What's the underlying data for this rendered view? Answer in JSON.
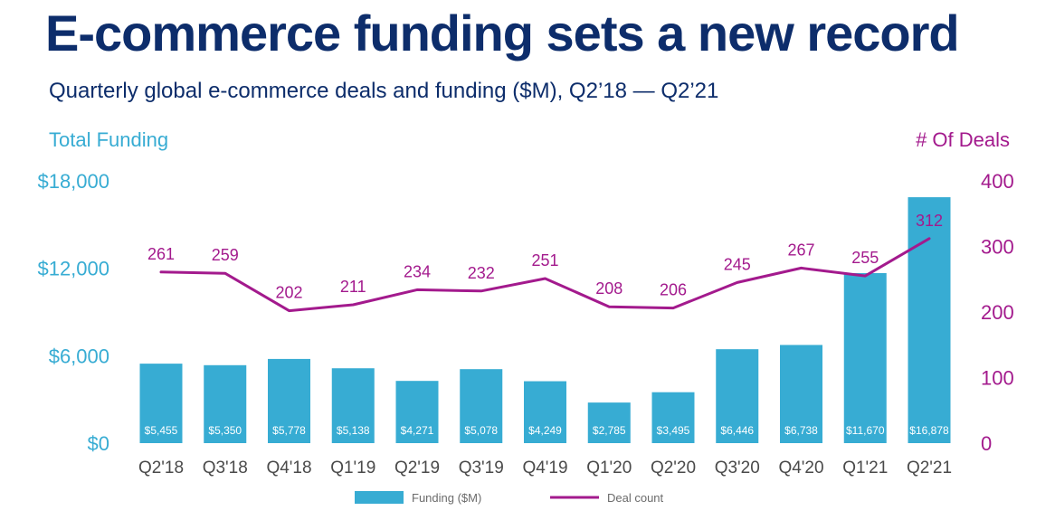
{
  "title": "E-commerce funding sets a new record",
  "subtitle": "Quarterly global e-commerce deals and funding ($M), Q2’18 — Q2’21",
  "colors": {
    "title": "#0d2d6b",
    "bars": "#37acd3",
    "line": "#a31a8d",
    "bar_label": "#ffffff",
    "tick": "#4a4a4a",
    "legend_text": "#6b6b6b"
  },
  "chart_data": {
    "type": "bar",
    "categories": [
      "Q2'18",
      "Q3'18",
      "Q4'18",
      "Q1'19",
      "Q2'19",
      "Q3'19",
      "Q4'19",
      "Q1'20",
      "Q2'20",
      "Q3'20",
      "Q4'20",
      "Q1'21",
      "Q2'21"
    ],
    "series": [
      {
        "name": "Funding ($M)",
        "type": "bar",
        "axis": "left",
        "values": [
          5455,
          5350,
          5778,
          5138,
          4271,
          5078,
          4249,
          2785,
          3495,
          6446,
          6738,
          11670,
          16878
        ],
        "labels": [
          "$5,455",
          "$5,350",
          "$5,778",
          "$5,138",
          "$4,271",
          "$5,078",
          "$4,249",
          "$2,785",
          "$3,495",
          "$6,446",
          "$6,738",
          "$11,670",
          "$16,878"
        ]
      },
      {
        "name": "Deal count",
        "type": "line",
        "axis": "right",
        "values": [
          261,
          259,
          202,
          211,
          234,
          232,
          251,
          208,
          206,
          245,
          267,
          255,
          312
        ],
        "labels": [
          "261",
          "259",
          "202",
          "211",
          "234",
          "232",
          "251",
          "208",
          "206",
          "245",
          "267",
          "255",
          "312"
        ]
      }
    ],
    "y_left": {
      "label": "Total Funding",
      "ylim": [
        0,
        18000
      ],
      "ticks": [
        0,
        6000,
        12000,
        18000
      ],
      "tick_labels": [
        "$0",
        "$6,000",
        "$12,000",
        "$18,000"
      ]
    },
    "y_right": {
      "label": "# Of Deals",
      "ylim": [
        0,
        400
      ],
      "ticks": [
        0,
        100,
        200,
        300,
        400
      ],
      "tick_labels": [
        "0",
        "100",
        "200",
        "300",
        "400"
      ]
    },
    "grid": false,
    "legend": {
      "position": "bottom",
      "items": [
        "Funding ($M)",
        "Deal count"
      ]
    }
  }
}
